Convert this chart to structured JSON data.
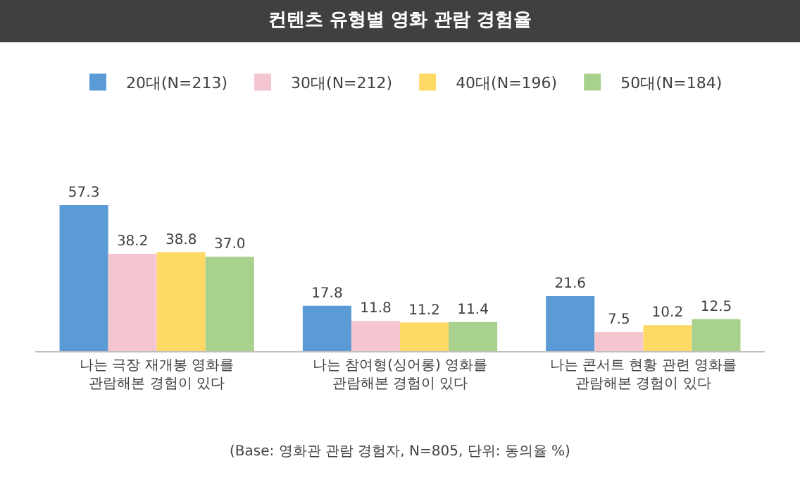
{
  "chart_data": {
    "type": "bar",
    "title": "컨텐츠 유형별 영화 관람 경험율",
    "categories": [
      "나는 극장 재개봉 영화를\n관람해본 경험이 있다",
      "나는 참여형(싱어롱) 영화를\n관람해본 경험이 있다",
      "나는 콘서트 현황 관련 영화를\n관람해본 경험이 있다"
    ],
    "series": [
      {
        "name": "20대(N=213)",
        "color": "#5b9bd5",
        "values": [
          57.3,
          17.8,
          21.6
        ],
        "value_labels": [
          "57.3",
          "17.8",
          "21.6"
        ]
      },
      {
        "name": "30대(N=212)",
        "color": "#f4c7d0",
        "values": [
          38.2,
          11.8,
          7.5
        ],
        "value_labels": [
          "38.2",
          "11.8",
          "7.5"
        ]
      },
      {
        "name": "40대(N=196)",
        "color": "#ffd966",
        "values": [
          38.8,
          11.2,
          10.2
        ],
        "value_labels": [
          "38.8",
          "11.2",
          "10.2"
        ]
      },
      {
        "name": "50대(N=184)",
        "color": "#a9d18e",
        "values": [
          37.0,
          11.4,
          12.5
        ],
        "value_labels": [
          "37.0",
          "11.4",
          "12.5"
        ]
      }
    ],
    "legend": "top",
    "grid": false,
    "annotations": [
      "(Base: 영화관 관람 경험자, N=805, 단위: 동의율 %)"
    ]
  }
}
